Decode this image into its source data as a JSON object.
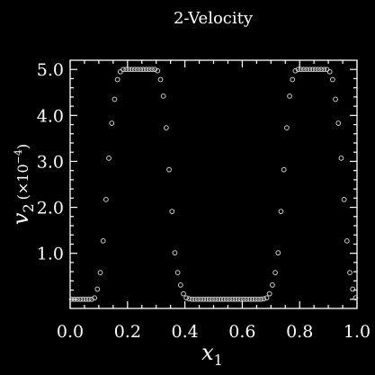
{
  "chart_data": {
    "type": "scatter",
    "title": "2-Velocity",
    "xlabel_main": "x",
    "xlabel_sub": "1",
    "ylabel_main": "v",
    "ylabel_sub": "2",
    "ylabel_scale_pre": "(×10",
    "ylabel_scale_exp": "−4",
    "ylabel_scale_post": ")",
    "xlim": [
      0.0,
      1.0
    ],
    "ylim": [
      -0.2,
      5.2
    ],
    "grid": false,
    "legend": "none",
    "xticks": [
      {
        "value": 0.0,
        "label": "0.0"
      },
      {
        "value": 0.2,
        "label": "0.2"
      },
      {
        "value": 0.4,
        "label": "0.4"
      },
      {
        "value": 0.6,
        "label": "0.6"
      },
      {
        "value": 0.8,
        "label": "0.8"
      },
      {
        "value": 1.0,
        "label": "1.0"
      }
    ],
    "yticks": [
      {
        "value": 1.0,
        "label": "1.0"
      },
      {
        "value": 2.0,
        "label": "2.0"
      },
      {
        "value": 3.0,
        "label": "3.0"
      },
      {
        "value": 4.0,
        "label": "4.0"
      },
      {
        "value": 5.0,
        "label": "5.0"
      }
    ],
    "series": [
      {
        "marker": "open-circle",
        "color": "#cccccc",
        "x": [
          0.005,
          0.015,
          0.025,
          0.035,
          0.045,
          0.055,
          0.065,
          0.075,
          0.085,
          0.095,
          0.105,
          0.115,
          0.125,
          0.135,
          0.145,
          0.155,
          0.165,
          0.175,
          0.185,
          0.195,
          0.205,
          0.215,
          0.225,
          0.235,
          0.245,
          0.255,
          0.265,
          0.275,
          0.285,
          0.295,
          0.305,
          0.315,
          0.325,
          0.335,
          0.345,
          0.355,
          0.365,
          0.375,
          0.385,
          0.395,
          0.405,
          0.415,
          0.425,
          0.435,
          0.445,
          0.455,
          0.465,
          0.475,
          0.485,
          0.495,
          0.505,
          0.515,
          0.525,
          0.535,
          0.545,
          0.555,
          0.565,
          0.575,
          0.585,
          0.595,
          0.605,
          0.615,
          0.625,
          0.635,
          0.645,
          0.655,
          0.665,
          0.675,
          0.685,
          0.695,
          0.705,
          0.715,
          0.725,
          0.735,
          0.745,
          0.755,
          0.765,
          0.775,
          0.785,
          0.795,
          0.805,
          0.815,
          0.825,
          0.835,
          0.845,
          0.855,
          0.865,
          0.875,
          0.885,
          0.895,
          0.905,
          0.915,
          0.925,
          0.935,
          0.945,
          0.955,
          0.965,
          0.975,
          0.985,
          0.995
        ],
        "y": [
          0.0,
          0.0,
          0.0,
          0.0,
          0.0,
          0.0,
          0.0,
          0.0,
          0.03,
          0.22,
          0.58,
          1.27,
          2.17,
          3.07,
          3.83,
          4.35,
          4.78,
          4.95,
          5.0,
          5.0,
          5.0,
          5.0,
          5.0,
          5.0,
          5.0,
          5.0,
          5.0,
          5.0,
          5.0,
          5.0,
          4.97,
          4.78,
          4.42,
          3.73,
          2.82,
          1.91,
          1.01,
          0.58,
          0.31,
          0.12,
          0.03,
          0.01,
          0.0,
          0.0,
          0.0,
          0.0,
          0.0,
          0.0,
          0.0,
          0.0,
          0.0,
          0.0,
          0.0,
          0.0,
          0.0,
          0.0,
          0.0,
          0.0,
          0.0,
          0.0,
          0.0,
          0.0,
          0.0,
          0.0,
          0.0,
          0.0,
          0.0,
          0.01,
          0.03,
          0.12,
          0.31,
          0.58,
          1.01,
          1.91,
          2.82,
          3.73,
          4.42,
          4.78,
          4.97,
          5.0,
          5.0,
          5.0,
          5.0,
          5.0,
          5.0,
          5.0,
          5.0,
          5.0,
          5.0,
          5.0,
          4.95,
          4.78,
          4.35,
          3.83,
          3.07,
          2.17,
          1.27,
          0.58,
          0.22,
          0.03
        ]
      }
    ]
  }
}
